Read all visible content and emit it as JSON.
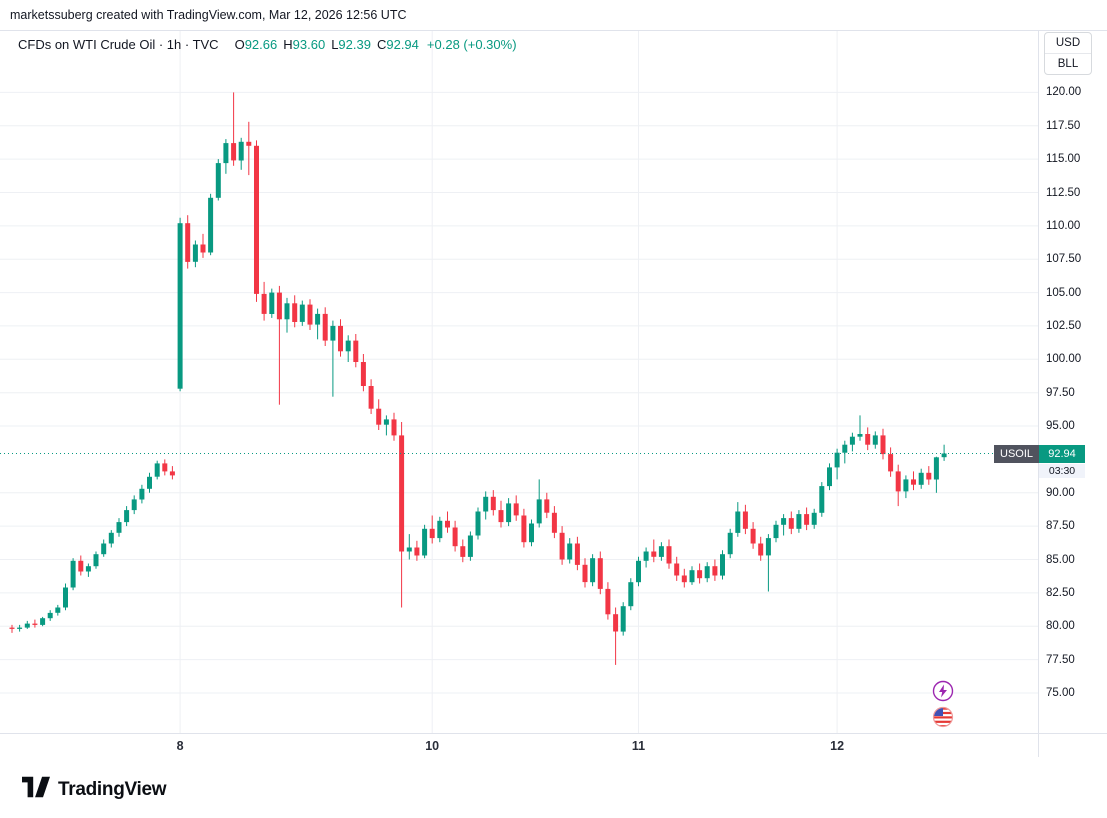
{
  "attribution": "marketssuberg created with TradingView.com, Mar 12, 2026 12:56 UTC",
  "legend": {
    "title": "CFDs on WTI Crude Oil · 1h · TVC",
    "o_label": "O",
    "o": "92.66",
    "h_label": "H",
    "h": "93.60",
    "l_label": "L",
    "l": "92.39",
    "c_label": "C",
    "c": "92.94",
    "change": "+0.28 (+0.30%)"
  },
  "price_scale": {
    "currency": "USD",
    "unit": "BLL"
  },
  "last_price_label": {
    "symbol": "USOIL",
    "price": "92.94",
    "countdown": "03:30"
  },
  "footer": {
    "brand": "TradingView"
  },
  "markers": {
    "lightning": "lightning-idea-marker",
    "flag": "us-flag-marker"
  },
  "colors": {
    "up": "#089981",
    "down": "#f23645",
    "grid": "#eef0f4",
    "axis_text": "#131722",
    "symbol_badge_bg": "#50535e",
    "accent_purple": "#9c27b0",
    "background": "#ffffff"
  },
  "chart_data": {
    "type": "candlestick",
    "title": "CFDs on WTI Crude Oil",
    "symbol": "USOIL",
    "exchange": "TVC",
    "timeframe": "1h",
    "unit": "USD/BLL",
    "last_price": 92.94,
    "y_range": [
      72.0,
      124.6
    ],
    "y_ticks": [
      120.0,
      117.5,
      115.0,
      112.5,
      110.0,
      107.5,
      105.0,
      102.5,
      100.0,
      97.5,
      95.0,
      90.0,
      87.5,
      85.0,
      82.5,
      80.0,
      77.5,
      75.0
    ],
    "x_labels": [
      {
        "text": "8",
        "index": 22
      },
      {
        "text": "10",
        "index": 55
      },
      {
        "text": "11",
        "index": 82
      },
      {
        "text": "12",
        "index": 108
      }
    ],
    "plot": {
      "x0": 12,
      "step": 7.64,
      "body_width": 5
    },
    "candles": [
      [
        79.9,
        80.1,
        79.5,
        79.8
      ],
      [
        79.8,
        80.1,
        79.6,
        79.9
      ],
      [
        79.9,
        80.4,
        79.8,
        80.2
      ],
      [
        80.2,
        80.5,
        79.9,
        80.1
      ],
      [
        80.1,
        80.7,
        80.0,
        80.6
      ],
      [
        80.6,
        81.2,
        80.4,
        81.0
      ],
      [
        81.0,
        81.6,
        80.8,
        81.4
      ],
      [
        81.4,
        83.2,
        81.2,
        82.9
      ],
      [
        82.9,
        85.1,
        82.7,
        84.9
      ],
      [
        84.9,
        85.3,
        83.8,
        84.1
      ],
      [
        84.1,
        84.7,
        83.7,
        84.5
      ],
      [
        84.5,
        85.6,
        84.3,
        85.4
      ],
      [
        85.4,
        86.5,
        85.2,
        86.2
      ],
      [
        86.2,
        87.2,
        85.9,
        87.0
      ],
      [
        87.0,
        88.1,
        86.7,
        87.8
      ],
      [
        87.8,
        89.0,
        87.5,
        88.7
      ],
      [
        88.7,
        89.8,
        88.4,
        89.5
      ],
      [
        89.5,
        90.6,
        89.2,
        90.3
      ],
      [
        90.3,
        91.5,
        90.0,
        91.2
      ],
      [
        91.2,
        92.4,
        91.0,
        92.2
      ],
      [
        92.2,
        92.5,
        91.3,
        91.6
      ],
      [
        91.6,
        92.0,
        91.0,
        91.3
      ],
      [
        97.8,
        110.6,
        97.6,
        110.2
      ],
      [
        110.2,
        110.8,
        106.8,
        107.3
      ],
      [
        107.3,
        108.9,
        106.9,
        108.6
      ],
      [
        108.6,
        109.4,
        107.6,
        108.0
      ],
      [
        108.0,
        112.4,
        107.8,
        112.1
      ],
      [
        112.1,
        115.0,
        111.9,
        114.7
      ],
      [
        114.7,
        116.5,
        113.9,
        116.2
      ],
      [
        116.2,
        120.0,
        114.5,
        114.9
      ],
      [
        114.9,
        116.6,
        114.2,
        116.3
      ],
      [
        116.3,
        117.8,
        113.8,
        116.0
      ],
      [
        116.0,
        116.4,
        104.3,
        104.9
      ],
      [
        104.9,
        105.8,
        102.9,
        103.4
      ],
      [
        103.4,
        105.3,
        103.1,
        105.0
      ],
      [
        105.0,
        105.5,
        96.6,
        103.0
      ],
      [
        103.0,
        104.6,
        102.0,
        104.2
      ],
      [
        104.2,
        104.8,
        102.4,
        102.8
      ],
      [
        102.8,
        104.4,
        102.5,
        104.1
      ],
      [
        104.1,
        104.5,
        102.2,
        102.6
      ],
      [
        102.6,
        103.8,
        101.5,
        103.4
      ],
      [
        103.4,
        103.9,
        101.0,
        101.4
      ],
      [
        101.4,
        102.9,
        97.2,
        102.5
      ],
      [
        102.5,
        103.0,
        100.2,
        100.6
      ],
      [
        100.6,
        101.8,
        99.8,
        101.4
      ],
      [
        101.4,
        101.9,
        99.4,
        99.8
      ],
      [
        99.8,
        100.4,
        97.6,
        98.0
      ],
      [
        98.0,
        98.5,
        95.9,
        96.3
      ],
      [
        96.3,
        97.0,
        94.7,
        95.1
      ],
      [
        95.1,
        95.8,
        94.3,
        95.5
      ],
      [
        95.5,
        96.0,
        93.9,
        94.3
      ],
      [
        94.3,
        95.3,
        81.4,
        85.6
      ],
      [
        85.6,
        86.9,
        85.0,
        85.9
      ],
      [
        85.9,
        86.4,
        84.9,
        85.3
      ],
      [
        85.3,
        87.6,
        85.1,
        87.3
      ],
      [
        87.3,
        88.3,
        86.2,
        86.6
      ],
      [
        86.6,
        88.2,
        86.3,
        87.9
      ],
      [
        87.9,
        88.6,
        87.0,
        87.4
      ],
      [
        87.4,
        87.9,
        85.6,
        86.0
      ],
      [
        86.0,
        86.5,
        84.8,
        85.2
      ],
      [
        85.2,
        87.1,
        84.9,
        86.8
      ],
      [
        86.8,
        88.9,
        86.5,
        88.6
      ],
      [
        88.6,
        90.1,
        88.0,
        89.7
      ],
      [
        89.7,
        90.2,
        88.3,
        88.7
      ],
      [
        88.7,
        89.4,
        87.4,
        87.8
      ],
      [
        87.8,
        89.6,
        87.5,
        89.2
      ],
      [
        89.2,
        89.8,
        87.9,
        88.3
      ],
      [
        88.3,
        88.8,
        85.9,
        86.3
      ],
      [
        86.3,
        88.0,
        86.0,
        87.7
      ],
      [
        87.7,
        91.0,
        87.4,
        89.5
      ],
      [
        89.5,
        90.0,
        88.1,
        88.5
      ],
      [
        88.5,
        89.0,
        86.6,
        87.0
      ],
      [
        87.0,
        87.5,
        84.6,
        85.0
      ],
      [
        85.0,
        86.6,
        84.7,
        86.2
      ],
      [
        86.2,
        86.7,
        84.2,
        84.6
      ],
      [
        84.6,
        85.1,
        82.9,
        83.3
      ],
      [
        83.3,
        85.4,
        83.0,
        85.1
      ],
      [
        85.1,
        85.6,
        82.4,
        82.8
      ],
      [
        82.8,
        83.3,
        80.5,
        80.9
      ],
      [
        80.9,
        81.4,
        77.1,
        79.6
      ],
      [
        79.6,
        81.8,
        79.3,
        81.5
      ],
      [
        81.5,
        83.6,
        81.2,
        83.3
      ],
      [
        83.3,
        85.2,
        83.0,
        84.9
      ],
      [
        84.9,
        85.9,
        84.4,
        85.6
      ],
      [
        85.6,
        86.5,
        84.8,
        85.2
      ],
      [
        85.2,
        86.3,
        84.9,
        86.0
      ],
      [
        86.0,
        86.5,
        84.3,
        84.7
      ],
      [
        84.7,
        85.2,
        83.4,
        83.8
      ],
      [
        83.8,
        84.3,
        82.9,
        83.3
      ],
      [
        83.3,
        84.5,
        83.1,
        84.2
      ],
      [
        84.2,
        84.7,
        83.2,
        83.6
      ],
      [
        83.6,
        84.8,
        83.3,
        84.5
      ],
      [
        84.5,
        85.0,
        83.4,
        83.8
      ],
      [
        83.8,
        85.7,
        83.5,
        85.4
      ],
      [
        85.4,
        87.3,
        85.1,
        87.0
      ],
      [
        87.0,
        89.3,
        86.7,
        88.6
      ],
      [
        88.6,
        89.1,
        86.9,
        87.3
      ],
      [
        87.3,
        87.8,
        85.8,
        86.2
      ],
      [
        86.2,
        86.7,
        84.9,
        85.3
      ],
      [
        85.3,
        86.9,
        82.6,
        86.6
      ],
      [
        86.6,
        87.9,
        86.3,
        87.6
      ],
      [
        87.6,
        88.4,
        86.8,
        88.1
      ],
      [
        88.1,
        88.6,
        86.9,
        87.3
      ],
      [
        87.3,
        88.7,
        87.0,
        88.4
      ],
      [
        88.4,
        88.9,
        87.2,
        87.6
      ],
      [
        87.6,
        88.8,
        87.3,
        88.5
      ],
      [
        88.5,
        90.8,
        88.2,
        90.5
      ],
      [
        90.5,
        92.2,
        90.2,
        91.9
      ],
      [
        91.9,
        93.3,
        91.0,
        93.0
      ],
      [
        93.0,
        93.9,
        92.2,
        93.6
      ],
      [
        93.6,
        94.5,
        93.1,
        94.2
      ],
      [
        94.2,
        95.8,
        93.9,
        94.4
      ],
      [
        94.4,
        94.9,
        93.2,
        93.6
      ],
      [
        93.6,
        94.6,
        93.3,
        94.3
      ],
      [
        94.3,
        94.8,
        92.5,
        92.9
      ],
      [
        92.9,
        93.4,
        91.2,
        91.6
      ],
      [
        91.6,
        92.1,
        89.0,
        90.1
      ],
      [
        90.1,
        91.3,
        89.6,
        91.0
      ],
      [
        91.0,
        91.6,
        90.2,
        90.6
      ],
      [
        90.6,
        91.8,
        90.3,
        91.5
      ],
      [
        91.5,
        92.0,
        90.6,
        91.0
      ],
      [
        91.0,
        92.7,
        90.0,
        92.66
      ],
      [
        92.66,
        93.6,
        92.39,
        92.94
      ]
    ]
  }
}
